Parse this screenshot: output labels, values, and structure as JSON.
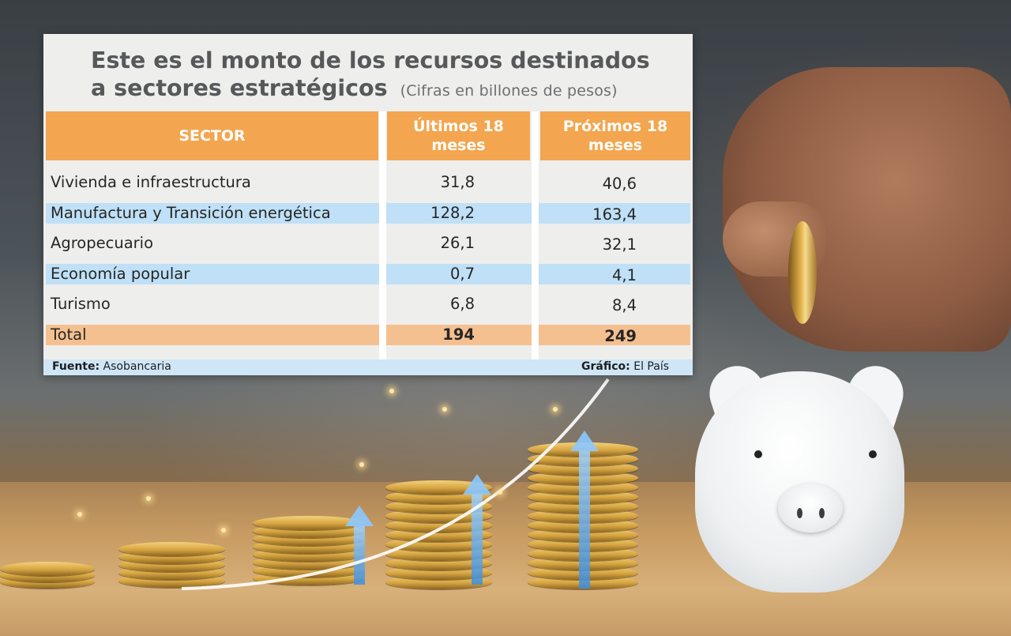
{
  "infographic": {
    "title_line1": "Este es el monto de los recursos destinados",
    "title_line2": "a sectores estratégicos",
    "subtitle": "(Cifras en billones de pesos)",
    "columns": [
      "SECTOR",
      "Últimos 18 meses",
      "Próximos 18 meses"
    ],
    "rows": [
      {
        "sector": "Vivienda e infraestructura",
        "ultimos": "31,8",
        "proximos": "40,6"
      },
      {
        "sector": "Manufactura y Transición energética",
        "ultimos": "128,2",
        "proximos": "163,4"
      },
      {
        "sector": "Agropecuario",
        "ultimos": "26,1",
        "proximos": "32,1"
      },
      {
        "sector": "Economía popular",
        "ultimos": "0,7",
        "proximos": "4,1"
      },
      {
        "sector": "Turismo",
        "ultimos": "6,8",
        "proximos": "8,4"
      },
      {
        "sector": "Total",
        "ultimos": "194",
        "proximos": "249"
      }
    ],
    "footer": {
      "source_label": "Fuente:",
      "source": "Asobancaria",
      "graphic_label": "Gráfico:",
      "graphic": "El País"
    },
    "colors": {
      "header_orange": "#f3a64f",
      "row_blue": "#bfe0f6",
      "total_orange": "#f5c090"
    }
  },
  "background": {
    "description_icons": [
      "coin-stack",
      "growth-arrow",
      "piggy-bank",
      "hand-with-coin"
    ]
  }
}
